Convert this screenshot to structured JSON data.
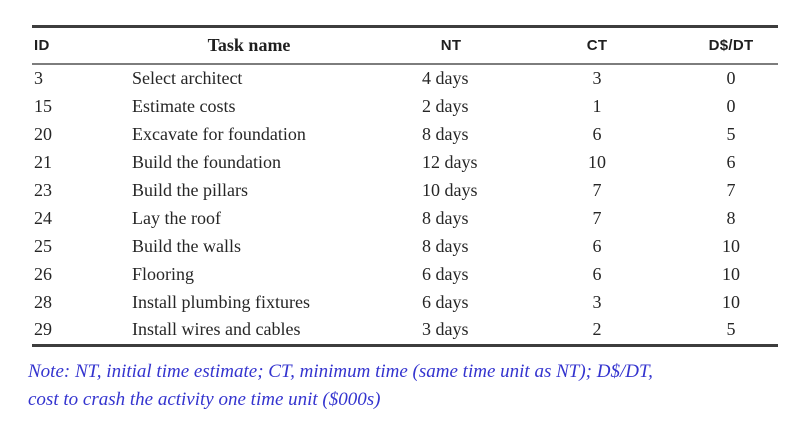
{
  "table": {
    "columns": [
      {
        "key": "id",
        "label": "ID"
      },
      {
        "key": "task",
        "label": "Task name"
      },
      {
        "key": "nt",
        "label": "NT"
      },
      {
        "key": "ct",
        "label": "CT"
      },
      {
        "key": "ddt",
        "label": "D$/DT"
      }
    ],
    "rows": [
      [
        "3",
        "Select architect",
        "4 days",
        "3",
        "0"
      ],
      [
        "15",
        "Estimate costs",
        "2 days",
        "1",
        "0"
      ],
      [
        "20",
        "Excavate for foundation",
        "8 days",
        "6",
        "5"
      ],
      [
        "21",
        "Build the foundation",
        "12 days",
        "10",
        "6"
      ],
      [
        "23",
        "Build the pillars",
        "10 days",
        "7",
        "7"
      ],
      [
        "24",
        "Lay the roof",
        "8 days",
        "7",
        "8"
      ],
      [
        "25",
        "Build the walls",
        "8 days",
        "6",
        "10"
      ],
      [
        "26",
        "Flooring",
        "6 days",
        "6",
        "10"
      ],
      [
        "28",
        "Install plumbing fixtures",
        "6 days",
        "3",
        "10"
      ],
      [
        "29",
        "Install wires and cables",
        "3 days",
        "2",
        "5"
      ]
    ]
  },
  "note": {
    "line1": "Note: NT, initial time estimate; CT, minimum time (same time unit as NT); D$/DT,",
    "line2": "cost to crash the activity one time unit ($000s)"
  },
  "colors": {
    "body_text": "#262626",
    "rule_dark": "#3d3d3d",
    "rule_header": "#7d7d7d",
    "note_blue": "#3434cf",
    "background": "#ffffff"
  }
}
